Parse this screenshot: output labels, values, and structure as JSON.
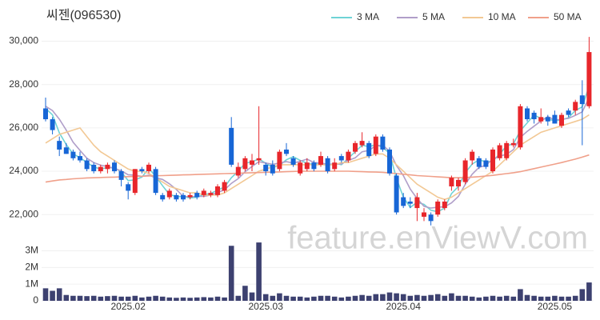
{
  "chart_data": {
    "type": "candlestick",
    "title": "씨젠(096530)",
    "watermark": "feature.enViewV.com",
    "categories": [
      null,
      null,
      null,
      null,
      null,
      null,
      null,
      null,
      null,
      null,
      null,
      null,
      "2025.02",
      null,
      null,
      null,
      null,
      null,
      null,
      null,
      null,
      null,
      null,
      null,
      null,
      null,
      null,
      null,
      null,
      null,
      null,
      null,
      "2025.03",
      null,
      null,
      null,
      null,
      null,
      null,
      null,
      null,
      null,
      null,
      null,
      null,
      null,
      null,
      null,
      null,
      null,
      null,
      null,
      "2025.04",
      null,
      null,
      null,
      null,
      null,
      null,
      null,
      null,
      null,
      null,
      null,
      null,
      null,
      null,
      null,
      null,
      null,
      null,
      null,
      null,
      null,
      "2025.05",
      null,
      null,
      null,
      null,
      null
    ],
    "open": [
      26900,
      26400,
      25400,
      25100,
      24900,
      24700,
      24500,
      24300,
      24000,
      24100,
      24400,
      24000,
      23400,
      23000,
      24100,
      24000,
      24100,
      22900,
      22800,
      22900,
      22900,
      22800,
      23000,
      22900,
      22900,
      22900,
      23100,
      26000,
      23800,
      24100,
      24300,
      24500,
      24300,
      24300,
      24100,
      25000,
      24600,
      23900,
      24100,
      24400,
      24300,
      24600,
      24100,
      24700,
      24500,
      24900,
      25200,
      25300,
      24800,
      25600,
      25000,
      23800,
      22800,
      22600,
      22300,
      21900,
      22000,
      22000,
      22300,
      23300,
      23300,
      23500,
      24500,
      24600,
      24500,
      24000,
      24600,
      24600,
      25200,
      25100,
      26900,
      26700,
      26300,
      26500,
      26600,
      26100,
      26800,
      26800,
      27500,
      27000
    ],
    "high": [
      27400,
      26500,
      25600,
      25300,
      25000,
      24900,
      24600,
      24400,
      24300,
      24400,
      24500,
      24100,
      23500,
      24100,
      24200,
      24400,
      24200,
      23000,
      23200,
      23000,
      23000,
      23000,
      23100,
      23200,
      23100,
      23400,
      23600,
      26500,
      24400,
      24700,
      24800,
      27000,
      24400,
      24500,
      25000,
      25300,
      24700,
      24500,
      24600,
      24500,
      24900,
      24700,
      24600,
      24800,
      25000,
      25400,
      25800,
      25400,
      25700,
      25700,
      25100,
      23900,
      23000,
      22800,
      23000,
      22300,
      22100,
      22700,
      22700,
      23800,
      23700,
      24600,
      25000,
      24700,
      24600,
      25100,
      25300,
      25400,
      25500,
      27100,
      27000,
      26800,
      26900,
      26600,
      26800,
      26700,
      26900,
      27300,
      28200,
      30200
    ],
    "low": [
      26300,
      25700,
      24700,
      24800,
      24500,
      24400,
      24000,
      23900,
      23900,
      23900,
      23900,
      23300,
      22700,
      22900,
      23900,
      23900,
      22900,
      22600,
      22700,
      22600,
      22600,
      22700,
      22700,
      22800,
      22800,
      22800,
      23000,
      24200,
      23700,
      24000,
      24000,
      24300,
      23800,
      23800,
      24000,
      24700,
      24200,
      23800,
      24000,
      24000,
      24200,
      23900,
      24000,
      24400,
      24400,
      24800,
      25100,
      24600,
      24700,
      24900,
      23800,
      22000,
      22300,
      22300,
      21700,
      21700,
      21500,
      21900,
      22200,
      23100,
      23100,
      23400,
      24300,
      24100,
      24100,
      23900,
      24500,
      24500,
      25100,
      25000,
      26300,
      26200,
      26200,
      26100,
      26200,
      26000,
      26500,
      26600,
      25200,
      26900
    ],
    "close": [
      26400,
      25900,
      25000,
      24800,
      24600,
      24500,
      24100,
      24000,
      24200,
      24300,
      24000,
      23600,
      23100,
      24100,
      24000,
      24300,
      23000,
      22700,
      23100,
      22700,
      22700,
      22900,
      22800,
      23100,
      23000,
      23300,
      23500,
      24300,
      24200,
      24600,
      24500,
      24600,
      24000,
      23900,
      24900,
      24800,
      24300,
      24400,
      24400,
      24100,
      24700,
      24000,
      24400,
      24500,
      24900,
      25300,
      25400,
      24700,
      25600,
      25000,
      23900,
      22100,
      22400,
      22500,
      22800,
      22100,
      21700,
      22600,
      22600,
      23700,
      23600,
      24500,
      24900,
      24200,
      24200,
      25000,
      25200,
      25300,
      25300,
      27000,
      26400,
      26400,
      26500,
      26300,
      26200,
      26600,
      26600,
      27200,
      27100,
      29500
    ],
    "up_color": "#e8262b",
    "down_color": "#1766d6",
    "series": [
      {
        "name": "3 MA",
        "color": "#6fd3d6",
        "values": [
          26900,
          26600,
          25770,
          25230,
          24800,
          24630,
          24400,
          24200,
          24100,
          24170,
          24170,
          23970,
          23570,
          23600,
          23730,
          24130,
          23770,
          23330,
          22930,
          22830,
          22830,
          22770,
          22800,
          22930,
          22970,
          23130,
          23270,
          23700,
          24000,
          24370,
          24430,
          24570,
          24370,
          24170,
          24270,
          24530,
          24670,
          24500,
          24370,
          24300,
          24400,
          24270,
          24370,
          24300,
          24600,
          24900,
          25200,
          25130,
          25230,
          25100,
          24830,
          23670,
          22800,
          22330,
          22570,
          22470,
          22200,
          22130,
          22300,
          22970,
          23300,
          23930,
          24330,
          24530,
          24430,
          24470,
          24800,
          25170,
          25270,
          25870,
          26230,
          26600,
          26430,
          26400,
          26330,
          26370,
          26470,
          26800,
          26970,
          27930
        ]
      },
      {
        "name": "5 MA",
        "color": "#b09ec9",
        "values": [
          27000,
          26800,
          26400,
          25900,
          25340,
          24960,
          24600,
          24400,
          24280,
          24220,
          24120,
          24020,
          23840,
          23820,
          23760,
          23820,
          23700,
          23620,
          23420,
          23160,
          22840,
          22820,
          22840,
          22840,
          22900,
          23020,
          23140,
          23440,
          23660,
          23980,
          24220,
          24440,
          24380,
          24320,
          24380,
          24440,
          24380,
          24460,
          24560,
          24400,
          24380,
          24320,
          24320,
          24340,
          24500,
          24620,
          24900,
          24960,
          25180,
          25200,
          24920,
          24260,
          23800,
          23180,
          22740,
          22380,
          22300,
          22340,
          22360,
          22540,
          22840,
          23400,
          23860,
          24180,
          24280,
          24560,
          24700,
          24780,
          25000,
          25560,
          25840,
          26080,
          26320,
          26520,
          26360,
          26400,
          26440,
          26580,
          26740,
          27400
        ]
      },
      {
        "name": "10 MA",
        "color": "#f2c894",
        "values": [
          25300,
          25500,
          25700,
          25800,
          25900,
          26000,
          25600,
          25200,
          24900,
          24700,
          24500,
          24300,
          24100,
          24000,
          24000,
          23900,
          23700,
          23500,
          23300,
          23200,
          23100,
          23000,
          23000,
          22900,
          22900,
          22900,
          23000,
          23200,
          23400,
          23600,
          23800,
          24000,
          24100,
          24200,
          24300,
          24300,
          24300,
          24300,
          24300,
          24300,
          24300,
          24300,
          24300,
          24400,
          24400,
          24500,
          24600,
          24700,
          24800,
          24800,
          24600,
          24300,
          24000,
          23700,
          23400,
          23200,
          23000,
          22800,
          22700,
          22800,
          23000,
          23200,
          23400,
          23600,
          23800,
          24000,
          24300,
          24600,
          24900,
          25200,
          25400,
          25600,
          25800,
          25900,
          26000,
          26100,
          26200,
          26300,
          26400,
          26600
        ]
      },
      {
        "name": "50 MA",
        "color": "#f0a08a",
        "values": [
          23500,
          23550,
          23600,
          23620,
          23650,
          23670,
          23690,
          23700,
          23710,
          23720,
          23730,
          23740,
          23750,
          23760,
          23770,
          23780,
          23790,
          23800,
          23810,
          23820,
          23830,
          23840,
          23850,
          23860,
          23870,
          23880,
          23890,
          23900,
          23910,
          23920,
          23930,
          23940,
          23950,
          23960,
          23970,
          23980,
          23990,
          24000,
          24000,
          24000,
          24000,
          24000,
          24000,
          24000,
          24000,
          23990,
          23980,
          23970,
          23960,
          23950,
          23920,
          23890,
          23860,
          23830,
          23800,
          23780,
          23760,
          23740,
          23720,
          23700,
          23700,
          23710,
          23730,
          23750,
          23780,
          23810,
          23850,
          23890,
          23930,
          23980,
          24050,
          24120,
          24190,
          24260,
          24330,
          24400,
          24480,
          24560,
          24650,
          24750
        ]
      }
    ],
    "ylim": [
      20900,
      30500
    ],
    "yticks": [
      {
        "value": 22000,
        "label": "22,000"
      },
      {
        "value": 24000,
        "label": "24,000"
      },
      {
        "value": 26000,
        "label": "26,000"
      },
      {
        "value": 28000,
        "label": "28,000"
      },
      {
        "value": 30000,
        "label": "30,000"
      }
    ],
    "grid": true,
    "legend": "top-right",
    "volume": {
      "color": "#3d4170",
      "values": [
        750000,
        600000,
        750000,
        350000,
        300000,
        300000,
        280000,
        300000,
        250000,
        280000,
        300000,
        250000,
        250000,
        300000,
        200000,
        250000,
        300000,
        250000,
        200000,
        180000,
        200000,
        180000,
        200000,
        220000,
        200000,
        250000,
        200000,
        3300000,
        300000,
        900000,
        500000,
        3500000,
        400000,
        300000,
        450000,
        300000,
        250000,
        250000,
        200000,
        250000,
        300000,
        300000,
        250000,
        200000,
        250000,
        300000,
        350000,
        300000,
        400000,
        400000,
        500000,
        450000,
        400000,
        300000,
        350000,
        300000,
        350000,
        400000,
        300000,
        450000,
        300000,
        300000,
        250000,
        200000,
        250000,
        300000,
        250000,
        300000,
        250000,
        700000,
        350000,
        300000,
        250000,
        250000,
        300000,
        250000,
        250000,
        300000,
        700000,
        1100000
      ],
      "ylim": [
        0,
        3600000
      ],
      "yticks": [
        0,
        {
          "value": 1000000,
          "label": "1M"
        },
        {
          "value": 2000000,
          "label": "2M"
        },
        {
          "value": 3000000,
          "label": "3M"
        }
      ]
    }
  }
}
